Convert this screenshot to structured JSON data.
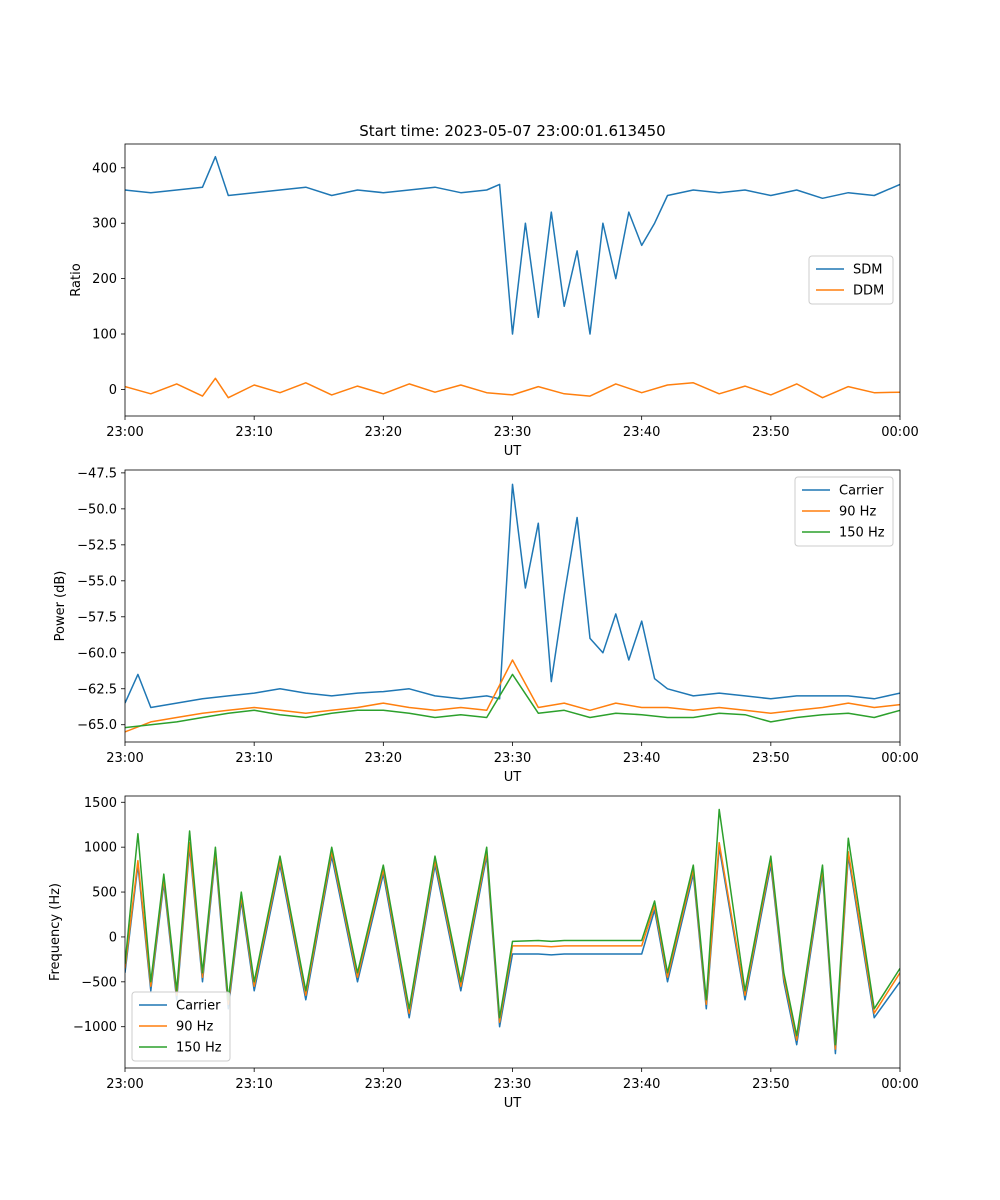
{
  "figure": {
    "title": "Start time: 2023-05-07 23:00:01.613450"
  },
  "colors": {
    "blue": "#1f77b4",
    "orange": "#ff7f0e",
    "green": "#2ca02c"
  },
  "chart_data": [
    {
      "type": "line",
      "xlabel": "UT",
      "ylabel": "Ratio",
      "xticks": [
        "23:00",
        "23:10",
        "23:20",
        "23:30",
        "23:40",
        "23:50",
        "00:00"
      ],
      "xlim": [
        "23:00",
        "00:00"
      ],
      "ylim": [
        -48,
        443
      ],
      "yticks": [
        0,
        100,
        200,
        300,
        400
      ],
      "legend": "center-right",
      "series": [
        {
          "name": "SDM",
          "color": "#1f77b4",
          "x": [
            "23:00",
            "23:02",
            "23:04",
            "23:06",
            "23:07",
            "23:08",
            "23:10",
            "23:12",
            "23:14",
            "23:16",
            "23:18",
            "23:20",
            "23:22",
            "23:24",
            "23:26",
            "23:28",
            "23:29",
            "23:30",
            "23:31",
            "23:32",
            "23:33",
            "23:34",
            "23:35",
            "23:36",
            "23:37",
            "23:38",
            "23:39",
            "23:40",
            "23:41",
            "23:42",
            "23:44",
            "23:46",
            "23:48",
            "23:50",
            "23:52",
            "23:54",
            "23:56",
            "23:58",
            "00:00"
          ],
          "values": [
            360,
            355,
            360,
            365,
            420,
            350,
            355,
            360,
            365,
            350,
            360,
            355,
            360,
            365,
            355,
            360,
            370,
            100,
            300,
            130,
            320,
            150,
            250,
            100,
            300,
            200,
            320,
            260,
            300,
            350,
            360,
            355,
            360,
            350,
            360,
            345,
            355,
            350,
            370
          ]
        },
        {
          "name": "DDM",
          "color": "#ff7f0e",
          "x": [
            "23:00",
            "23:02",
            "23:04",
            "23:06",
            "23:07",
            "23:08",
            "23:10",
            "23:12",
            "23:14",
            "23:16",
            "23:18",
            "23:20",
            "23:22",
            "23:24",
            "23:26",
            "23:28",
            "23:30",
            "23:32",
            "23:34",
            "23:36",
            "23:38",
            "23:40",
            "23:42",
            "23:44",
            "23:46",
            "23:48",
            "23:50",
            "23:52",
            "23:54",
            "23:56",
            "23:58",
            "00:00"
          ],
          "values": [
            5,
            -8,
            10,
            -12,
            20,
            -15,
            8,
            -6,
            12,
            -10,
            6,
            -8,
            10,
            -5,
            8,
            -6,
            -10,
            5,
            -8,
            -12,
            10,
            -6,
            8,
            12,
            -8,
            6,
            -10,
            10,
            -15,
            5,
            -6,
            -5
          ]
        }
      ]
    },
    {
      "type": "line",
      "xlabel": "UT",
      "ylabel": "Power (dB)",
      "xticks": [
        "23:00",
        "23:10",
        "23:20",
        "23:30",
        "23:40",
        "23:50",
        "00:00"
      ],
      "xlim": [
        "23:00",
        "00:00"
      ],
      "ylim": [
        -66.2,
        -47.3
      ],
      "yticks": [
        -65.0,
        -62.5,
        -60.0,
        -57.5,
        -55.0,
        -52.5,
        -50.0,
        -47.5
      ],
      "ytick_labels": [
        "−65.0",
        "−62.5",
        "−60.0",
        "−57.5",
        "−55.0",
        "−52.5",
        "−50.0",
        "−47.5"
      ],
      "legend": "top-right",
      "series": [
        {
          "name": "Carrier",
          "color": "#1f77b4",
          "x": [
            "23:00",
            "23:01",
            "23:02",
            "23:04",
            "23:06",
            "23:08",
            "23:10",
            "23:12",
            "23:14",
            "23:16",
            "23:18",
            "23:20",
            "23:22",
            "23:24",
            "23:26",
            "23:28",
            "23:29",
            "23:30",
            "23:31",
            "23:32",
            "23:33",
            "23:34",
            "23:35",
            "23:36",
            "23:37",
            "23:38",
            "23:39",
            "23:40",
            "23:41",
            "23:42",
            "23:44",
            "23:46",
            "23:48",
            "23:50",
            "23:52",
            "23:54",
            "23:56",
            "23:58",
            "00:00"
          ],
          "values": [
            -63.5,
            -61.5,
            -63.8,
            -63.5,
            -63.2,
            -63.0,
            -62.8,
            -62.5,
            -62.8,
            -63.0,
            -62.8,
            -62.7,
            -62.5,
            -63.0,
            -63.2,
            -63.0,
            -63.2,
            -48.3,
            -55.5,
            -51.0,
            -62.0,
            -56.0,
            -50.6,
            -59.0,
            -60.0,
            -57.3,
            -60.5,
            -57.8,
            -61.8,
            -62.5,
            -63.0,
            -62.8,
            -63.0,
            -63.2,
            -63.0,
            -63.0,
            -63.0,
            -63.2,
            -62.8
          ]
        },
        {
          "name": "90 Hz",
          "color": "#ff7f0e",
          "x": [
            "23:00",
            "23:02",
            "23:04",
            "23:06",
            "23:08",
            "23:10",
            "23:12",
            "23:14",
            "23:16",
            "23:18",
            "23:20",
            "23:22",
            "23:24",
            "23:26",
            "23:28",
            "23:30",
            "23:32",
            "23:34",
            "23:36",
            "23:38",
            "23:40",
            "23:42",
            "23:44",
            "23:46",
            "23:48",
            "23:50",
            "23:52",
            "23:54",
            "23:56",
            "23:58",
            "00:00"
          ],
          "values": [
            -65.5,
            -64.8,
            -64.5,
            -64.2,
            -64.0,
            -63.8,
            -64.0,
            -64.2,
            -64.0,
            -63.8,
            -63.5,
            -63.8,
            -64.0,
            -63.8,
            -64.0,
            -60.5,
            -63.8,
            -63.5,
            -64.0,
            -63.5,
            -63.8,
            -63.8,
            -64.0,
            -63.8,
            -64.0,
            -64.2,
            -64.0,
            -63.8,
            -63.5,
            -63.8,
            -63.6
          ]
        },
        {
          "name": "150 Hz",
          "color": "#2ca02c",
          "x": [
            "23:00",
            "23:02",
            "23:04",
            "23:06",
            "23:08",
            "23:10",
            "23:12",
            "23:14",
            "23:16",
            "23:18",
            "23:20",
            "23:22",
            "23:24",
            "23:26",
            "23:28",
            "23:30",
            "23:32",
            "23:34",
            "23:36",
            "23:38",
            "23:40",
            "23:42",
            "23:44",
            "23:46",
            "23:48",
            "23:50",
            "23:52",
            "23:54",
            "23:56",
            "23:58",
            "00:00"
          ],
          "values": [
            -65.2,
            -65.0,
            -64.8,
            -64.5,
            -64.2,
            -64.0,
            -64.3,
            -64.5,
            -64.2,
            -64.0,
            -64.0,
            -64.2,
            -64.5,
            -64.3,
            -64.5,
            -61.5,
            -64.2,
            -64.0,
            -64.5,
            -64.2,
            -64.3,
            -64.5,
            -64.5,
            -64.2,
            -64.3,
            -64.8,
            -64.5,
            -64.3,
            -64.2,
            -64.5,
            -64.0
          ]
        }
      ]
    },
    {
      "type": "line",
      "xlabel": "UT",
      "ylabel": "Frequency (Hz)",
      "xticks": [
        "23:00",
        "23:10",
        "23:20",
        "23:30",
        "23:40",
        "23:50",
        "00:00"
      ],
      "xlim": [
        "23:00",
        "00:00"
      ],
      "ylim": [
        -1460,
        1570
      ],
      "yticks": [
        -1000,
        -500,
        0,
        500,
        1000,
        1500
      ],
      "ytick_labels": [
        "−1000",
        "−500",
        "0",
        "500",
        "1000",
        "1500"
      ],
      "legend": "bottom-left",
      "series": [
        {
          "name": "Carrier",
          "color": "#1f77b4",
          "x": [
            "23:00",
            "23:01",
            "23:02",
            "23:03",
            "23:04",
            "23:05",
            "23:06",
            "23:07",
            "23:08",
            "23:09",
            "23:10",
            "23:12",
            "23:14",
            "23:16",
            "23:18",
            "23:20",
            "23:22",
            "23:24",
            "23:26",
            "23:28",
            "23:29",
            "23:30",
            "23:32",
            "23:33",
            "23:34",
            "23:36",
            "23:38",
            "23:40",
            "23:41",
            "23:42",
            "23:44",
            "23:45",
            "23:46",
            "23:48",
            "23:50",
            "23:51",
            "23:52",
            "23:54",
            "23:55",
            "23:56",
            "23:58",
            "00:00"
          ],
          "values": [
            -400,
            800,
            -600,
            600,
            -700,
            1000,
            -500,
            900,
            -800,
            400,
            -600,
            800,
            -700,
            900,
            -500,
            700,
            -900,
            800,
            -600,
            900,
            -1000,
            -190,
            -190,
            -200,
            -190,
            -190,
            -190,
            -190,
            300,
            -500,
            700,
            -800,
            1000,
            -700,
            800,
            -500,
            -1200,
            700,
            -1300,
            900,
            -900,
            -500
          ]
        },
        {
          "name": "90 Hz",
          "color": "#ff7f0e",
          "x": [
            "23:00",
            "23:01",
            "23:02",
            "23:03",
            "23:04",
            "23:05",
            "23:06",
            "23:07",
            "23:08",
            "23:09",
            "23:10",
            "23:12",
            "23:14",
            "23:16",
            "23:18",
            "23:20",
            "23:22",
            "23:24",
            "23:26",
            "23:28",
            "23:29",
            "23:30",
            "23:32",
            "23:33",
            "23:34",
            "23:36",
            "23:38",
            "23:40",
            "23:41",
            "23:42",
            "23:44",
            "23:45",
            "23:46",
            "23:48",
            "23:50",
            "23:51",
            "23:52",
            "23:54",
            "23:55",
            "23:56",
            "23:58",
            "00:00"
          ],
          "values": [
            -350,
            850,
            -550,
            650,
            -650,
            1050,
            -450,
            950,
            -750,
            450,
            -550,
            850,
            -650,
            950,
            -450,
            750,
            -850,
            850,
            -550,
            950,
            -950,
            -100,
            -100,
            -110,
            -100,
            -100,
            -100,
            -100,
            350,
            -450,
            750,
            -750,
            1050,
            -650,
            850,
            -450,
            -1150,
            750,
            -1250,
            950,
            -850,
            -400
          ]
        },
        {
          "name": "150 Hz",
          "color": "#2ca02c",
          "x": [
            "23:00",
            "23:01",
            "23:02",
            "23:03",
            "23:04",
            "23:05",
            "23:06",
            "23:07",
            "23:08",
            "23:09",
            "23:10",
            "23:12",
            "23:14",
            "23:16",
            "23:18",
            "23:20",
            "23:22",
            "23:24",
            "23:26",
            "23:28",
            "23:29",
            "23:30",
            "23:32",
            "23:33",
            "23:34",
            "23:36",
            "23:38",
            "23:40",
            "23:41",
            "23:42",
            "23:44",
            "23:45",
            "23:46",
            "23:48",
            "23:50",
            "23:51",
            "23:52",
            "23:54",
            "23:55",
            "23:56",
            "23:58",
            "00:00"
          ],
          "values": [
            -300,
            1150,
            -500,
            700,
            -600,
            1180,
            -400,
            1000,
            -700,
            500,
            -500,
            900,
            -600,
            1000,
            -400,
            800,
            -800,
            900,
            -500,
            1000,
            -900,
            -50,
            -40,
            -50,
            -40,
            -40,
            -40,
            -40,
            400,
            -400,
            800,
            -700,
            1420,
            -600,
            900,
            -400,
            -1100,
            800,
            -1200,
            1100,
            -800,
            -350
          ]
        }
      ]
    }
  ]
}
